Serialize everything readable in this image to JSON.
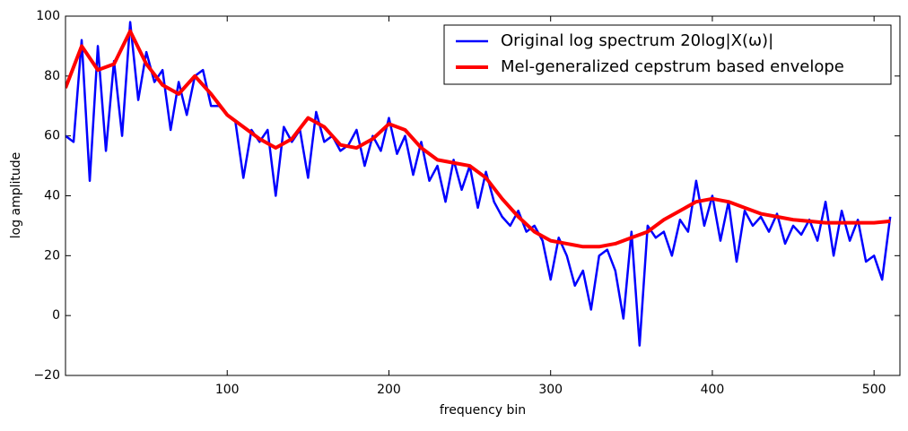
{
  "chart_data": {
    "type": "line",
    "xlabel": "frequency bin",
    "ylabel": "log amplitude",
    "xlim": [
      0,
      516
    ],
    "ylim": [
      -20,
      100
    ],
    "xticks": [
      100,
      200,
      300,
      400,
      500
    ],
    "yticks": [
      {
        "value": -20,
        "label": "−20"
      },
      0,
      20,
      40,
      60,
      80,
      100
    ],
    "legend": "upper right",
    "series": [
      {
        "name": "Original log spectrum 20log|X(ω)|",
        "color": "#0000ff",
        "x": [
          0,
          5,
          10,
          15,
          20,
          25,
          30,
          35,
          40,
          45,
          50,
          55,
          60,
          65,
          70,
          75,
          80,
          85,
          90,
          95,
          100,
          105,
          110,
          115,
          120,
          125,
          130,
          135,
          140,
          145,
          150,
          155,
          160,
          165,
          170,
          175,
          180,
          185,
          190,
          195,
          200,
          205,
          210,
          215,
          220,
          225,
          230,
          235,
          240,
          245,
          250,
          255,
          260,
          265,
          270,
          275,
          280,
          285,
          290,
          295,
          300,
          305,
          310,
          315,
          320,
          325,
          330,
          335,
          340,
          345,
          350,
          355,
          360,
          365,
          370,
          375,
          380,
          385,
          390,
          395,
          400,
          405,
          410,
          415,
          420,
          425,
          430,
          435,
          440,
          445,
          450,
          455,
          460,
          465,
          470,
          475,
          480,
          485,
          490,
          495,
          500,
          505,
          510
        ],
        "values": [
          60,
          58,
          92,
          45,
          90,
          55,
          85,
          60,
          98,
          72,
          88,
          78,
          82,
          62,
          78,
          67,
          80,
          82,
          70,
          70,
          67,
          65,
          46,
          62,
          58,
          62,
          40,
          63,
          58,
          62,
          46,
          68,
          58,
          60,
          55,
          57,
          62,
          50,
          60,
          55,
          66,
          54,
          60,
          47,
          58,
          45,
          50,
          38,
          52,
          42,
          50,
          36,
          48,
          38,
          33,
          30,
          35,
          28,
          30,
          25,
          12,
          26,
          20,
          10,
          15,
          2,
          20,
          22,
          15,
          -1,
          28,
          -10,
          30,
          26,
          28,
          20,
          32,
          28,
          45,
          30,
          40,
          25,
          38,
          18,
          35,
          30,
          33,
          28,
          34,
          24,
          30,
          27,
          32,
          25,
          38,
          20,
          35,
          25,
          32,
          18,
          20,
          12,
          33
        ]
      },
      {
        "name": "Mel-generalized cepstrum based envelope",
        "color": "#ff0000",
        "x": [
          0,
          10,
          20,
          30,
          40,
          50,
          60,
          70,
          80,
          90,
          100,
          110,
          120,
          130,
          140,
          150,
          160,
          170,
          180,
          190,
          200,
          210,
          220,
          230,
          240,
          250,
          260,
          270,
          280,
          290,
          300,
          310,
          320,
          330,
          340,
          350,
          360,
          370,
          380,
          390,
          400,
          410,
          420,
          430,
          440,
          450,
          460,
          470,
          480,
          490,
          500,
          510
        ],
        "values": [
          76,
          90,
          82,
          84,
          95,
          84,
          77,
          74,
          80,
          74,
          67,
          63,
          59,
          56,
          59,
          66,
          63,
          57,
          56,
          59,
          64,
          62,
          56,
          52,
          51,
          50,
          46,
          39,
          33,
          28,
          25,
          24,
          23,
          23,
          24,
          26,
          28,
          32,
          35,
          38,
          39,
          38,
          36,
          34,
          33,
          32,
          31.5,
          31,
          31,
          31,
          31,
          31.5
        ]
      }
    ]
  }
}
